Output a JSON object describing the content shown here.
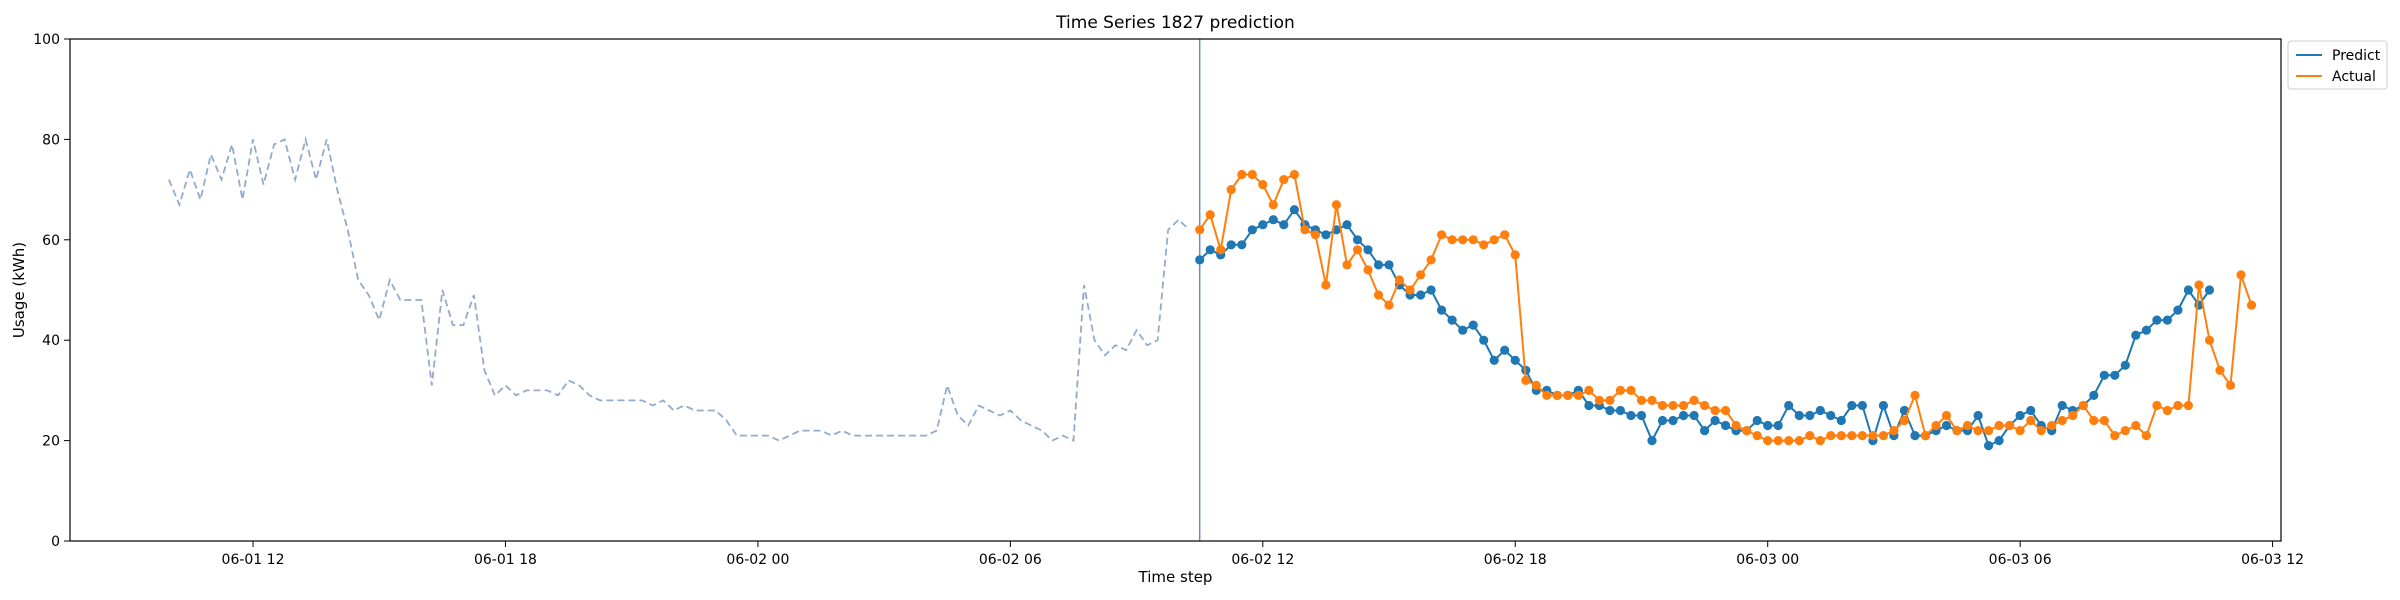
{
  "chart_data": {
    "type": "line",
    "title": "Time Series 1827 prediction",
    "xlabel": "Time step",
    "ylabel": "Usage (kWh)",
    "ylim": [
      0,
      100
    ],
    "yticks": [
      0,
      20,
      40,
      60,
      80,
      100
    ],
    "x_unit": "hours, 2023-06-01 00:00 origin",
    "xlim": [
      7.65,
      60.2
    ],
    "xticks": [
      {
        "value": 12,
        "label": "06-01 12"
      },
      {
        "value": 18,
        "label": "06-01 18"
      },
      {
        "value": 24,
        "label": "06-02 00"
      },
      {
        "value": 30,
        "label": "06-02 06"
      },
      {
        "value": 36,
        "label": "06-02 12"
      },
      {
        "value": 42,
        "label": "06-02 18"
      },
      {
        "value": 48,
        "label": "06-03 00"
      },
      {
        "value": 54,
        "label": "06-03 06"
      },
      {
        "value": 60,
        "label": "06-03 12"
      }
    ],
    "grid": false,
    "legend_position": "outside-top-right",
    "forecast_start_x": 34.5,
    "history": {
      "x_start": 10.0,
      "x_step": 0.25,
      "values": [
        72,
        67,
        74,
        68,
        77,
        72,
        79,
        68,
        80,
        71,
        79,
        80,
        72,
        80,
        72,
        80,
        70,
        62,
        52,
        49,
        44,
        52,
        48,
        48,
        48,
        31,
        50,
        43,
        43,
        49,
        34,
        29,
        31,
        29,
        30,
        30,
        30,
        29,
        32,
        31,
        29,
        28,
        28,
        28,
        28,
        28,
        27,
        28,
        26,
        27,
        26,
        26,
        26,
        24,
        21,
        21,
        21,
        21,
        20,
        21,
        22,
        22,
        22,
        21,
        22,
        21,
        21,
        21,
        21,
        21,
        21,
        21,
        21,
        22,
        31,
        25,
        23,
        27,
        26,
        25,
        26,
        24,
        23,
        22,
        20,
        21,
        20,
        51,
        40,
        37,
        39,
        38,
        42,
        39,
        40,
        62,
        64,
        62
      ]
    },
    "series": [
      {
        "name": "Predict",
        "color": "#1f77b4",
        "x_start": 34.5,
        "x_step": 0.25,
        "values": [
          56,
          58,
          57,
          59,
          59,
          62,
          63,
          64,
          63,
          66,
          63,
          62,
          61,
          62,
          63,
          60,
          58,
          55,
          55,
          51,
          49,
          49,
          50,
          46,
          44,
          42,
          43,
          40,
          36,
          38,
          36,
          34,
          30,
          30,
          29,
          29,
          30,
          27,
          27,
          26,
          26,
          25,
          25,
          20,
          24,
          24,
          25,
          25,
          22,
          24,
          23,
          22,
          22,
          24,
          23,
          23,
          27,
          25,
          25,
          26,
          25,
          24,
          27,
          27,
          20,
          27,
          21,
          26,
          21,
          21,
          22,
          23,
          22,
          22,
          25,
          19,
          20,
          23,
          25,
          26,
          23,
          22,
          27,
          26,
          27,
          29,
          33,
          33,
          35,
          41,
          42,
          44,
          44,
          46,
          50,
          47,
          50
        ]
      },
      {
        "name": "Actual",
        "color": "#ff7f0e",
        "x_start": 34.5,
        "x_step": 0.25,
        "values": [
          62,
          65,
          58,
          70,
          73,
          73,
          71,
          67,
          72,
          73,
          62,
          61,
          51,
          67,
          55,
          58,
          54,
          49,
          47,
          52,
          50,
          53,
          56,
          61,
          60,
          60,
          60,
          59,
          60,
          61,
          57,
          32,
          31,
          29,
          29,
          29,
          29,
          30,
          28,
          28,
          30,
          30,
          28,
          28,
          27,
          27,
          27,
          28,
          27,
          26,
          26,
          23,
          22,
          21,
          20,
          20,
          20,
          20,
          21,
          20,
          21,
          21,
          21,
          21,
          21,
          21,
          22,
          24,
          29,
          21,
          23,
          25,
          22,
          23,
          22,
          22,
          23,
          23,
          22,
          24,
          22,
          23,
          24,
          25,
          27,
          24,
          24,
          21,
          22,
          23,
          21,
          27,
          26,
          27,
          27,
          51,
          40,
          34,
          31,
          53,
          47
        ]
      }
    ]
  }
}
